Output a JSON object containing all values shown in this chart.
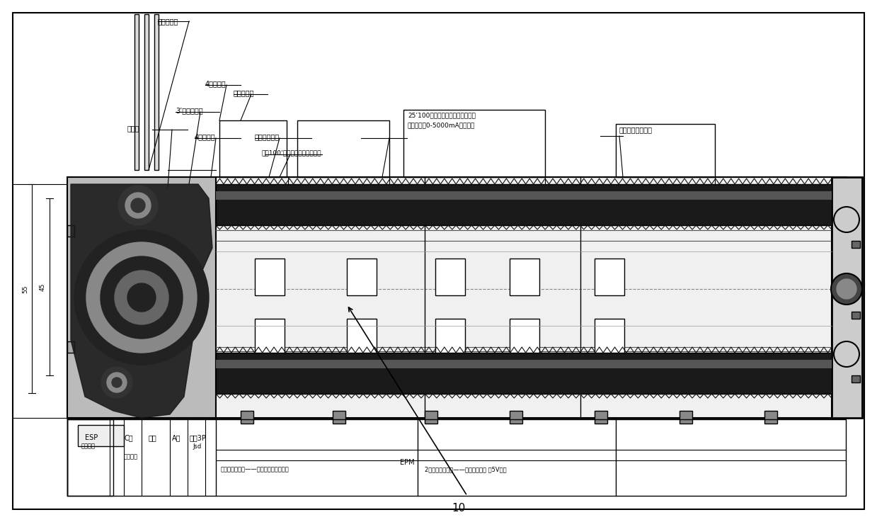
{
  "bg": "#ffffff",
  "lc": "#000000",
  "gray1": "#aaaaaa",
  "gray2": "#666666",
  "gray3": "#333333",
  "gray4": "#888888",
  "gray5": "#cccccc",
  "ann_texts": {
    "label1": "口电气平地",
    "label2": "4组蒸隆机",
    "label3": "市燭导电用",
    "label4": "3’升压变压器",
    "label5": "三相圆",
    "label6": "4个直流机",
    "label7": "市定电压地传",
    "label8": "若个100’升流电气访产产发电山",
    "label9a": "25’100升若全制限测制内容量装置",
    "label9b": "充放电流偈0-5000mA可调装置",
    "label10": "若升测容量电容器",
    "epm": "EPM",
    "esp": "ESP",
    "adj": "调速电机",
    "co": "C口",
    "shan": "山幅",
    "ao": "A口",
    "sanxiang": "三相3P",
    "jsd": "Jsd",
    "shanfen": "山幅分机",
    "bottom_left": "内位电机控制二——山山网络控制器可受",
    "bottom_right": "2个内容量定制二——山山定定定定 定5V可下",
    "ref10": "10",
    "dim55": "55",
    "dim45": "45"
  }
}
